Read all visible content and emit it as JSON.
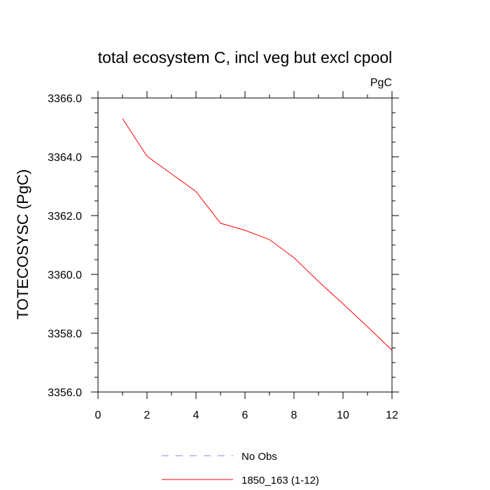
{
  "chart_data": {
    "type": "line",
    "title": "total ecosystem C, incl veg but excl cpool",
    "units": "PgC",
    "ylabel": "TOTECOSYSC  (PgC)",
    "xlabel": "",
    "xlim": [
      0,
      12
    ],
    "ylim": [
      3356.0,
      3366.0
    ],
    "xticks": [
      "0",
      "2",
      "4",
      "6",
      "8",
      "10",
      "12"
    ],
    "yticks": [
      "3356.0",
      "3358.0",
      "3360.0",
      "3362.0",
      "3364.0",
      "3366.0"
    ],
    "series": [
      {
        "name": "1850_163 (1-12)",
        "color": "#ff0000",
        "style": "solid",
        "x": [
          1,
          2,
          3,
          4,
          5,
          6,
          7,
          8,
          9,
          10,
          11,
          12
        ],
        "y": [
          3365.3,
          3364.02,
          3363.42,
          3362.82,
          3361.74,
          3361.5,
          3361.18,
          3360.57,
          3359.76,
          3359.0,
          3358.22,
          3357.42
        ]
      }
    ],
    "legend": [
      {
        "label": "No Obs",
        "color": "#8a8ae6",
        "style": "dashed"
      },
      {
        "label": "1850_163 (1-12)",
        "color": "#ff0000",
        "style": "solid"
      }
    ],
    "legend_position": "bottom",
    "grid": false
  }
}
